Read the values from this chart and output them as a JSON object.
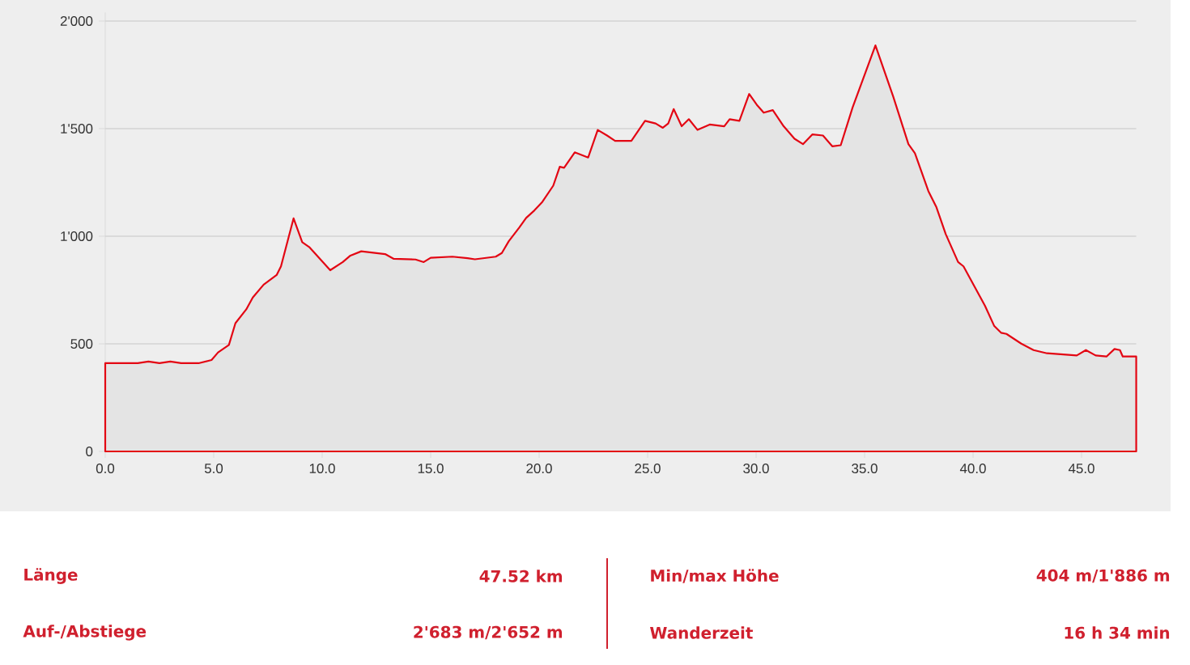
{
  "chart_data": {
    "type": "area",
    "x": [
      0,
      1.5,
      1.99,
      2.5,
      3.0,
      3.5,
      4.3,
      4.9,
      5.2,
      5.7,
      6.0,
      6.5,
      6.8,
      7.3,
      7.9,
      8.1,
      8.68,
      9.08,
      9.4,
      10.37,
      10.95,
      11.3,
      11.8,
      12.9,
      13.3,
      14.3,
      14.68,
      15.0,
      16.0,
      16.7,
      17.04,
      18.0,
      18.28,
      18.6,
      19.08,
      19.4,
      19.78,
      20.15,
      20.65,
      20.95,
      21.15,
      21.64,
      22.26,
      22.7,
      23.13,
      23.5,
      24.25,
      24.88,
      25.37,
      25.7,
      25.95,
      26.2,
      26.57,
      26.9,
      27.3,
      27.86,
      28.53,
      28.78,
      29.23,
      29.68,
      30.03,
      30.35,
      30.77,
      31.27,
      31.77,
      32.16,
      32.59,
      33.08,
      33.51,
      33.9,
      34.45,
      35.5,
      36.32,
      37.02,
      37.32,
      37.94,
      38.31,
      38.74,
      39.31,
      39.56,
      40.55,
      40.97,
      41.3,
      41.54,
      42.22,
      42.79,
      43.41,
      44.78,
      45.2,
      45.65,
      46.15,
      46.52,
      46.77,
      46.9,
      47.26,
      47.52
    ],
    "series": [
      {
        "color": "#e30613",
        "values": [
          410,
          410,
          418,
          410,
          418,
          410,
          410,
          425,
          460,
          495,
          596,
          660,
          715,
          775,
          820,
          860,
          1083,
          972,
          950,
          842,
          880,
          910,
          930,
          917,
          895,
          892,
          880,
          900,
          905,
          898,
          893,
          905,
          922,
          977,
          1040,
          1085,
          1120,
          1160,
          1235,
          1323,
          1318,
          1390,
          1366,
          1494,
          1468,
          1443,
          1443,
          1536,
          1524,
          1504,
          1524,
          1591,
          1511,
          1544,
          1494,
          1519,
          1511,
          1544,
          1536,
          1661,
          1611,
          1574,
          1586,
          1511,
          1453,
          1428,
          1473,
          1468,
          1418,
          1423,
          1599,
          1887,
          1649,
          1428,
          1386,
          1210,
          1135,
          1010,
          880,
          860,
          677,
          584,
          551,
          546,
          501,
          471,
          456,
          446,
          471,
          446,
          441,
          476,
          471,
          441,
          441,
          441
        ]
      }
    ],
    "xlim": [
      0,
      47.52
    ],
    "ylim": [
      0,
      2040
    ],
    "xticks": [
      {
        "value": 0,
        "label": "0.0"
      },
      {
        "value": 5,
        "label": "5.0"
      },
      {
        "value": 10,
        "label": "10.0"
      },
      {
        "value": 15,
        "label": "15.0"
      },
      {
        "value": 20,
        "label": "20.0"
      },
      {
        "value": 25,
        "label": "25.0"
      },
      {
        "value": 30,
        "label": "30.0"
      },
      {
        "value": 35,
        "label": "35.0"
      },
      {
        "value": 40,
        "label": "40.0"
      },
      {
        "value": 45,
        "label": "45.0"
      }
    ],
    "yticks": [
      0,
      500,
      {
        "value": 1000,
        "label": "1'000"
      },
      {
        "value": 1500,
        "label": "1'500"
      },
      {
        "value": 2000,
        "label": "2'000"
      }
    ],
    "grid": "y",
    "annotations": [
      "Länge",
      "47.52 km",
      "Min/max Höhe",
      "404 m/1'886 m",
      "Auf-/Abstiege",
      "2'683 m/2'652 m",
      "Wanderzeit",
      "16 h 34 min"
    ]
  }
}
